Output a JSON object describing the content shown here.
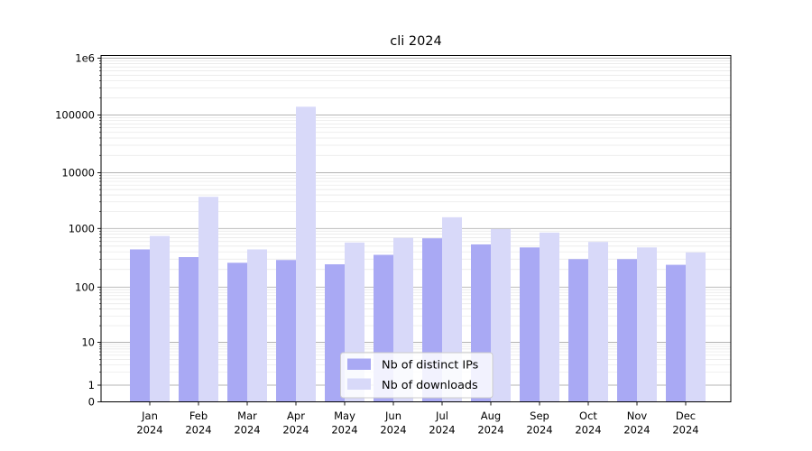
{
  "window": {
    "title": "cli 2024"
  },
  "colors": {
    "background": "#ffffff",
    "bar_ips": "#a9a9f4",
    "bar_downloads": "#d8d9f9",
    "grid_major": "#b4b4b4",
    "grid_minor": "#e6e6e6",
    "axis": "#000000",
    "legend_border": "#cccccc",
    "legend_bg": "rgba(255,255,255,0.85)"
  },
  "chart_data": {
    "type": "bar",
    "title": "cli 2024",
    "categories": [
      "Jan 2024",
      "Feb 2024",
      "Mar 2024",
      "Apr 2024",
      "May 2024",
      "Jun 2024",
      "Jul 2024",
      "Aug 2024",
      "Sep 2024",
      "Oct 2024",
      "Nov 2024",
      "Dec 2024"
    ],
    "series": [
      {
        "name": "Nb of distinct IPs",
        "color_key": "bar_ips",
        "values": [
          440,
          325,
          260,
          290,
          245,
          355,
          680,
          535,
          475,
          300,
          300,
          240
        ]
      },
      {
        "name": "Nb of downloads",
        "color_key": "bar_downloads",
        "values": [
          745,
          3700,
          440,
          140000,
          575,
          690,
          1590,
          980,
          850,
          590,
          475,
          390
        ]
      }
    ],
    "xlabel": "",
    "ylabel": "",
    "yscale": "symlog",
    "ylim": [
      0,
      1000000
    ],
    "y_ticks": [
      {
        "label": "1e6",
        "value": 1000000
      },
      {
        "label": "100000",
        "value": 100000
      },
      {
        "label": "10000",
        "value": 10000
      },
      {
        "label": "1000",
        "value": 1000
      },
      {
        "label": "100",
        "value": 100
      },
      {
        "label": "10",
        "value": 10
      },
      {
        "label": "1",
        "value": 1
      },
      {
        "label": "0",
        "value": 0
      }
    ],
    "grid": "both",
    "legend_position": "lower center"
  },
  "legend": {
    "items": [
      {
        "label": "Nb of distinct IPs",
        "color_key": "bar_ips"
      },
      {
        "label": "Nb of downloads",
        "color_key": "bar_downloads"
      }
    ]
  }
}
